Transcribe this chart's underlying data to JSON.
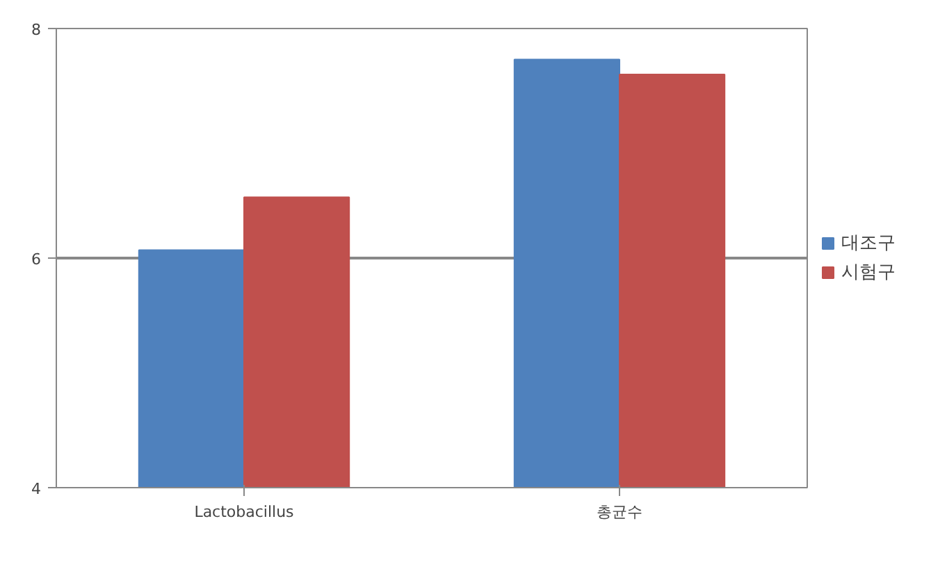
{
  "chart_data": {
    "type": "bar",
    "categories": [
      "Lactobacillus",
      "총균수"
    ],
    "series": [
      {
        "name": "대조구",
        "color": "#4f81bd",
        "values": [
          6.07,
          7.73
        ]
      },
      {
        "name": "시험구",
        "color": "#c0504d",
        "values": [
          6.53,
          7.6
        ]
      }
    ],
    "ylim": [
      4,
      8
    ],
    "yticks": [
      4,
      6,
      8
    ],
    "grid": "y",
    "legend": "right"
  }
}
